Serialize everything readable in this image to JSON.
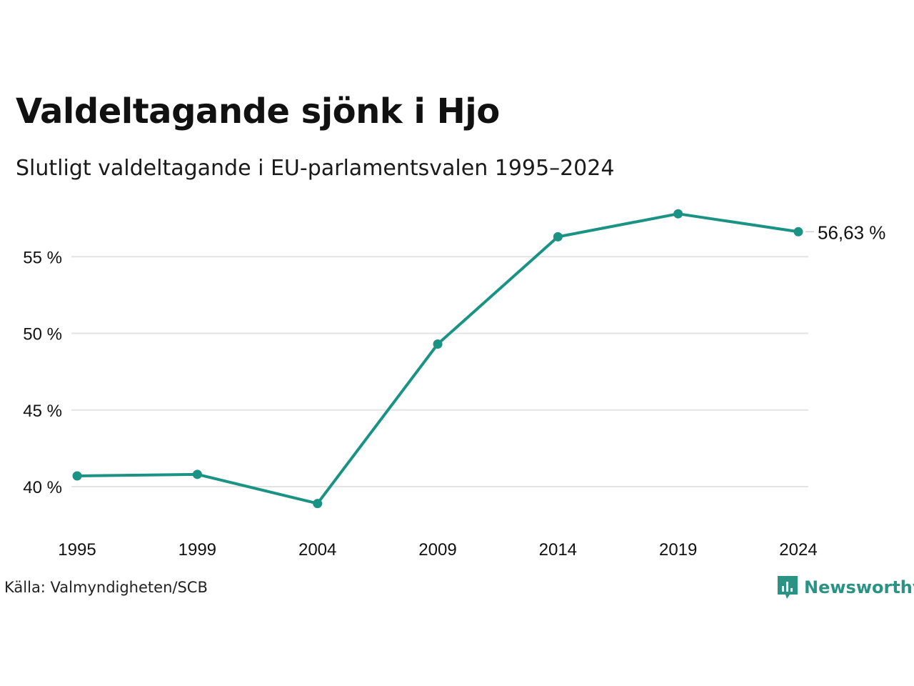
{
  "header": {
    "title": "Valdeltagande sjönk i Hjo",
    "subtitle": "Slutligt valdeltagande i EU-parlamentsvalen 1995–2024"
  },
  "footer": {
    "source": "Källa: Valmyndigheten/SCB",
    "brand": "Newsworthy"
  },
  "colors": {
    "line": "#1a9384",
    "grid": "#e3e3e3",
    "brand": "#2a9384"
  },
  "chart_data": {
    "type": "line",
    "title": "Valdeltagande sjönk i Hjo",
    "subtitle": "Slutligt valdeltagande i EU-parlamentsvalen 1995–2024",
    "xlabel": "",
    "ylabel": "",
    "x": [
      "1995",
      "1999",
      "2004",
      "2009",
      "2014",
      "2019",
      "2024"
    ],
    "series": [
      {
        "values": [
          40.7,
          40.8,
          38.9,
          49.3,
          56.3,
          57.8,
          56.63
        ]
      }
    ],
    "y_ticks": [
      40,
      45,
      50,
      55
    ],
    "y_tick_labels": [
      "40 %",
      "45 %",
      "50 %",
      "55 %"
    ],
    "ylim": [
      38,
      58
    ],
    "grid": true,
    "end_label": "56,63 %"
  }
}
